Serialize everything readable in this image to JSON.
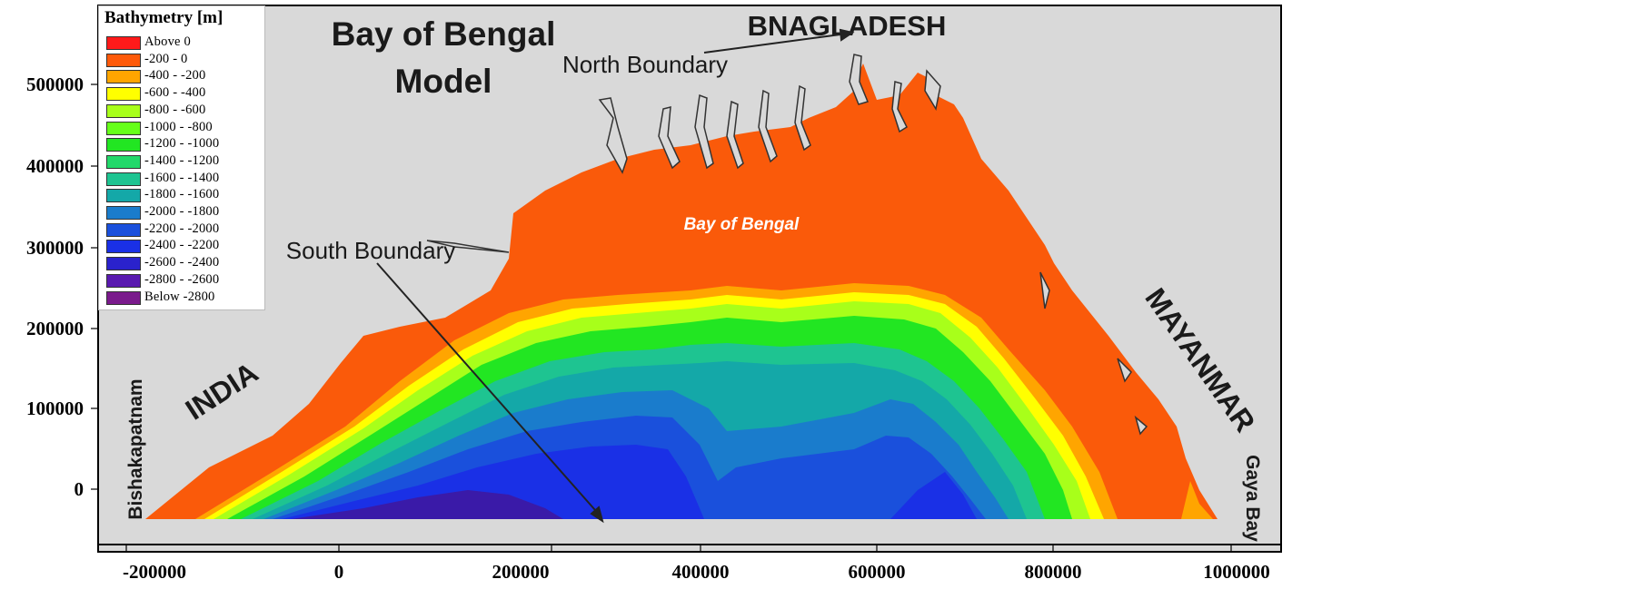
{
  "map": {
    "title_line1": "Bay of Bengal",
    "title_line2": "Model",
    "labels": {
      "bangladesh": "BNAGLADESH",
      "north_boundary": "North Boundary",
      "south_boundary": "South Boundary",
      "bay_of_bengal": "Bay of Bengal",
      "india": "INDIA",
      "myanmar": "MAYANMAR",
      "bishakapatnam": "Bishakapatnam",
      "gaya_bay": "Gaya Bay"
    },
    "x_ticks": [
      "-200000",
      "0",
      "200000",
      "400000",
      "600000",
      "800000",
      "1000000"
    ],
    "y_ticks": [
      "500000",
      "400000",
      "300000",
      "200000",
      "100000",
      "0"
    ],
    "colors": {
      "background": "#d9d9d9",
      "land_orange": "#fa5a0a",
      "deep_purple": "#3a1aa8"
    }
  },
  "legend": {
    "title": "Bathymetry [m]",
    "items": [
      {
        "label": "Above        0",
        "color": "#ff1a1a"
      },
      {
        "label": "-200 -        0",
        "color": "#ff5a0a"
      },
      {
        "label": "-400 -   -200",
        "color": "#ffa500"
      },
      {
        "label": "-600 -   -400",
        "color": "#ffff00"
      },
      {
        "label": "-800 -   -600",
        "color": "#a8ff1a"
      },
      {
        "label": "-1000 -   -800",
        "color": "#66ff1a"
      },
      {
        "label": "-1200 - -1000",
        "color": "#22e622"
      },
      {
        "label": "-1400 - -1200",
        "color": "#22d86a"
      },
      {
        "label": "-1600 - -1400",
        "color": "#1ec491"
      },
      {
        "label": "-1800 - -1600",
        "color": "#14a8a8"
      },
      {
        "label": "-2000 - -1800",
        "color": "#1a7ccc"
      },
      {
        "label": "-2200 - -2000",
        "color": "#1a50dc"
      },
      {
        "label": "-2400 - -2200",
        "color": "#1a30e6"
      },
      {
        "label": "-2600 - -2400",
        "color": "#2a22cc"
      },
      {
        "label": "-2800 - -2600",
        "color": "#5a1ab0"
      },
      {
        "label": "Below   -2800",
        "color": "#7a1a8c"
      }
    ]
  }
}
